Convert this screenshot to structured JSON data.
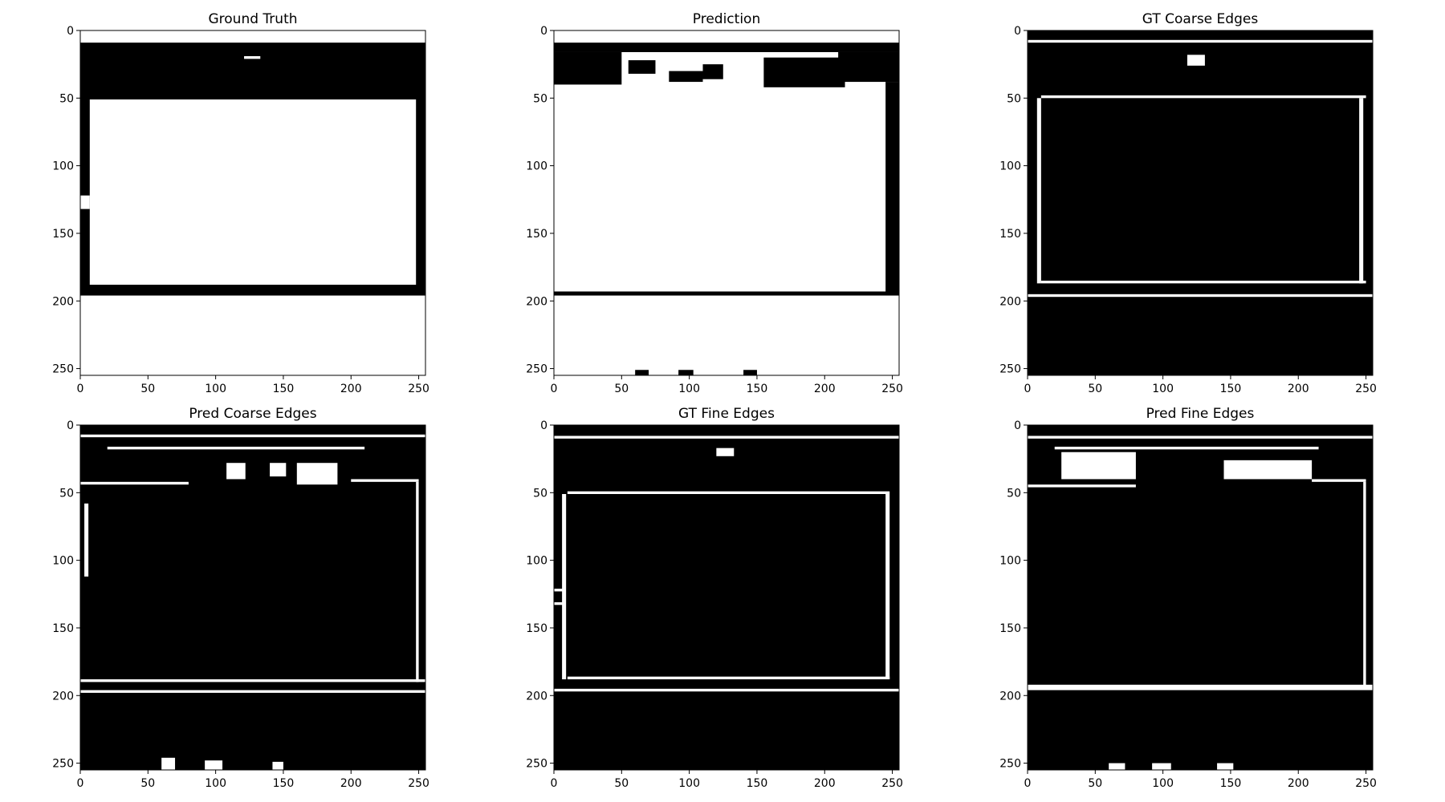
{
  "chart_data": [
    {
      "type": "heatmap",
      "title": "Ground Truth",
      "xlim": [
        0,
        255
      ],
      "ylim": [
        255,
        0
      ],
      "xticks": [
        0,
        50,
        100,
        150,
        200,
        250
      ],
      "yticks": [
        0,
        50,
        100,
        150,
        200,
        250
      ],
      "background": "white",
      "rects": [
        {
          "c": "black",
          "x": [
            0,
            255
          ],
          "y": [
            9,
            196
          ]
        },
        {
          "c": "white",
          "x": [
            7,
            248
          ],
          "y": [
            51,
            188
          ]
        },
        {
          "c": "white",
          "x": [
            0,
            7
          ],
          "y": [
            122,
            132
          ]
        },
        {
          "c": "white",
          "x": [
            121,
            133
          ],
          "y": [
            19,
            21
          ]
        }
      ]
    },
    {
      "type": "heatmap",
      "title": "Prediction",
      "xlim": [
        0,
        255
      ],
      "ylim": [
        255,
        0
      ],
      "xticks": [
        0,
        50,
        100,
        150,
        200,
        250
      ],
      "yticks": [
        0,
        50,
        100,
        150,
        200,
        250
      ],
      "background": "white",
      "rects": [
        {
          "c": "black",
          "x": [
            0,
            255
          ],
          "y": [
            9,
            16
          ]
        },
        {
          "c": "black",
          "x": [
            0,
            50
          ],
          "y": [
            16,
            40
          ]
        },
        {
          "c": "black",
          "x": [
            210,
            255
          ],
          "y": [
            16,
            38
          ]
        },
        {
          "c": "black",
          "x": [
            245,
            255
          ],
          "y": [
            38,
            196
          ]
        },
        {
          "c": "black",
          "x": [
            0,
            255
          ],
          "y": [
            193,
            196
          ]
        },
        {
          "c": "black",
          "x": [
            55,
            75
          ],
          "y": [
            22,
            32
          ]
        },
        {
          "c": "black",
          "x": [
            110,
            125
          ],
          "y": [
            25,
            36
          ]
        },
        {
          "c": "black",
          "x": [
            155,
            215
          ],
          "y": [
            20,
            42
          ]
        },
        {
          "c": "black",
          "x": [
            85,
            110
          ],
          "y": [
            30,
            38
          ]
        },
        {
          "c": "black",
          "x": [
            60,
            70
          ],
          "y": [
            251,
            255
          ]
        },
        {
          "c": "black",
          "x": [
            92,
            103
          ],
          "y": [
            251,
            255
          ]
        },
        {
          "c": "black",
          "x": [
            140,
            150
          ],
          "y": [
            251,
            255
          ]
        }
      ]
    },
    {
      "type": "heatmap",
      "title": "GT Coarse Edges",
      "xlim": [
        0,
        255
      ],
      "ylim": [
        255,
        0
      ],
      "xticks": [
        0,
        50,
        100,
        150,
        200,
        250
      ],
      "yticks": [
        0,
        50,
        100,
        150,
        200,
        250
      ],
      "background": "black",
      "rects": [
        {
          "c": "white",
          "x": [
            0,
            255
          ],
          "y": [
            7,
            9
          ]
        },
        {
          "c": "white",
          "x": [
            0,
            255
          ],
          "y": [
            195,
            197
          ]
        },
        {
          "c": "white",
          "x": [
            118,
            131
          ],
          "y": [
            18,
            26
          ]
        },
        {
          "c": "white",
          "x": [
            10,
            250
          ],
          "y": [
            48,
            50
          ]
        },
        {
          "c": "white",
          "x": [
            10,
            250
          ],
          "y": [
            185,
            187
          ]
        },
        {
          "c": "white",
          "x": [
            7,
            10
          ],
          "y": [
            50,
            187
          ]
        },
        {
          "c": "white",
          "x": [
            245,
            248
          ],
          "y": [
            50,
            187
          ]
        }
      ]
    },
    {
      "type": "heatmap",
      "title": "Pred Coarse Edges",
      "xlim": [
        0,
        255
      ],
      "ylim": [
        255,
        0
      ],
      "xticks": [
        0,
        50,
        100,
        150,
        200,
        250
      ],
      "yticks": [
        0,
        50,
        100,
        150,
        200,
        250
      ],
      "background": "black",
      "rects": [
        {
          "c": "white",
          "x": [
            0,
            255
          ],
          "y": [
            7,
            9
          ]
        },
        {
          "c": "white",
          "x": [
            0,
            255
          ],
          "y": [
            196,
            198
          ]
        },
        {
          "c": "white",
          "x": [
            0,
            255
          ],
          "y": [
            188,
            190
          ]
        },
        {
          "c": "white",
          "x": [
            0,
            80
          ],
          "y": [
            42,
            44
          ]
        },
        {
          "c": "white",
          "x": [
            200,
            250
          ],
          "y": [
            40,
            42
          ]
        },
        {
          "c": "white",
          "x": [
            20,
            210
          ],
          "y": [
            16,
            18
          ]
        },
        {
          "c": "white",
          "x": [
            248,
            250
          ],
          "y": [
            42,
            190
          ]
        },
        {
          "c": "white",
          "x": [
            3,
            6
          ],
          "y": [
            58,
            112
          ]
        },
        {
          "c": "white",
          "x": [
            108,
            122
          ],
          "y": [
            28,
            40
          ]
        },
        {
          "c": "white",
          "x": [
            140,
            152
          ],
          "y": [
            28,
            38
          ]
        },
        {
          "c": "white",
          "x": [
            160,
            190
          ],
          "y": [
            28,
            44
          ]
        },
        {
          "c": "white",
          "x": [
            60,
            70
          ],
          "y": [
            246,
            255
          ]
        },
        {
          "c": "white",
          "x": [
            92,
            105
          ],
          "y": [
            248,
            255
          ]
        },
        {
          "c": "white",
          "x": [
            142,
            150
          ],
          "y": [
            249,
            255
          ]
        }
      ]
    },
    {
      "type": "heatmap",
      "title": "GT Fine Edges",
      "xlim": [
        0,
        255
      ],
      "ylim": [
        255,
        0
      ],
      "xticks": [
        0,
        50,
        100,
        150,
        200,
        250
      ],
      "yticks": [
        0,
        50,
        100,
        150,
        200,
        250
      ],
      "background": "black",
      "rects": [
        {
          "c": "white",
          "x": [
            0,
            255
          ],
          "y": [
            8,
            10
          ]
        },
        {
          "c": "white",
          "x": [
            0,
            255
          ],
          "y": [
            195,
            197
          ]
        },
        {
          "c": "white",
          "x": [
            120,
            133
          ],
          "y": [
            17,
            23
          ]
        },
        {
          "c": "white",
          "x": [
            10,
            248
          ],
          "y": [
            49,
            51
          ]
        },
        {
          "c": "white",
          "x": [
            10,
            248
          ],
          "y": [
            186,
            188
          ]
        },
        {
          "c": "white",
          "x": [
            6,
            9
          ],
          "y": [
            51,
            188
          ]
        },
        {
          "c": "white",
          "x": [
            245,
            248
          ],
          "y": [
            51,
            188
          ]
        },
        {
          "c": "white",
          "x": [
            0,
            7
          ],
          "y": [
            121,
            123
          ]
        },
        {
          "c": "white",
          "x": [
            0,
            7
          ],
          "y": [
            131,
            133
          ]
        }
      ]
    },
    {
      "type": "heatmap",
      "title": "Pred Fine Edges",
      "xlim": [
        0,
        255
      ],
      "ylim": [
        255,
        0
      ],
      "xticks": [
        0,
        50,
        100,
        150,
        200,
        250
      ],
      "yticks": [
        0,
        50,
        100,
        150,
        200,
        250
      ],
      "background": "black",
      "rects": [
        {
          "c": "white",
          "x": [
            0,
            255
          ],
          "y": [
            8,
            10
          ]
        },
        {
          "c": "white",
          "x": [
            0,
            255
          ],
          "y": [
            192,
            196
          ]
        },
        {
          "c": "white",
          "x": [
            0,
            80
          ],
          "y": [
            44,
            46
          ]
        },
        {
          "c": "white",
          "x": [
            210,
            250
          ],
          "y": [
            40,
            42
          ]
        },
        {
          "c": "white",
          "x": [
            20,
            215
          ],
          "y": [
            16,
            18
          ]
        },
        {
          "c": "white",
          "x": [
            248,
            250
          ],
          "y": [
            42,
            194
          ]
        },
        {
          "c": "white",
          "x": [
            25,
            80
          ],
          "y": [
            20,
            40
          ]
        },
        {
          "c": "white",
          "x": [
            145,
            210
          ],
          "y": [
            26,
            40
          ]
        },
        {
          "c": "white",
          "x": [
            60,
            72
          ],
          "y": [
            250,
            255
          ]
        },
        {
          "c": "white",
          "x": [
            92,
            106
          ],
          "y": [
            250,
            255
          ]
        },
        {
          "c": "white",
          "x": [
            140,
            152
          ],
          "y": [
            250,
            255
          ]
        }
      ]
    }
  ]
}
